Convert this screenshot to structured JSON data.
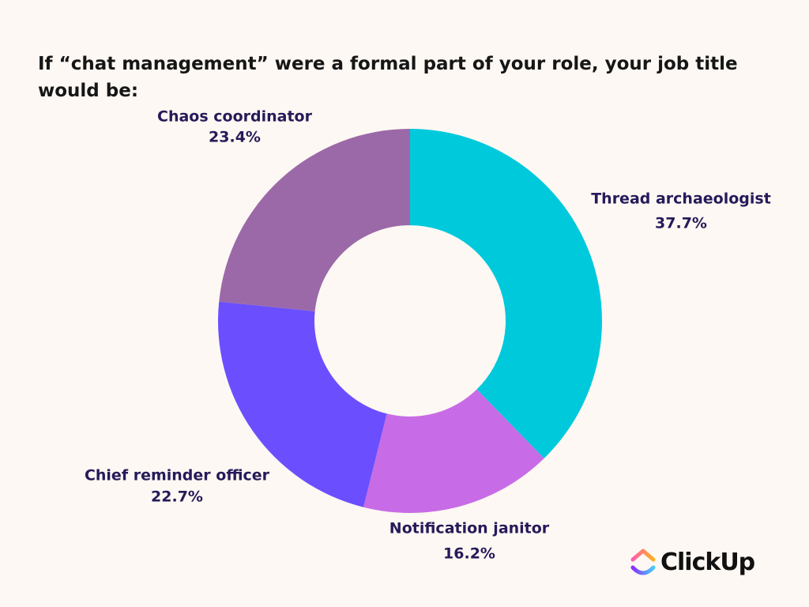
{
  "chart_data": {
    "type": "donut",
    "title": "If “chat management” were a formal part of your role, your job title would be:",
    "categories": [
      "Thread archaeologist",
      "Notification janitor",
      "Chief reminder officer",
      "Chaos coordinator"
    ],
    "values": [
      37.7,
      16.2,
      22.7,
      23.4
    ],
    "value_labels": [
      "37.7%",
      "16.2%",
      "22.7%",
      "23.4%"
    ],
    "colors": [
      "#00c9dc",
      "#c76ce6",
      "#6b4fff",
      "#9b69a8"
    ]
  },
  "logo": "ClickUp"
}
